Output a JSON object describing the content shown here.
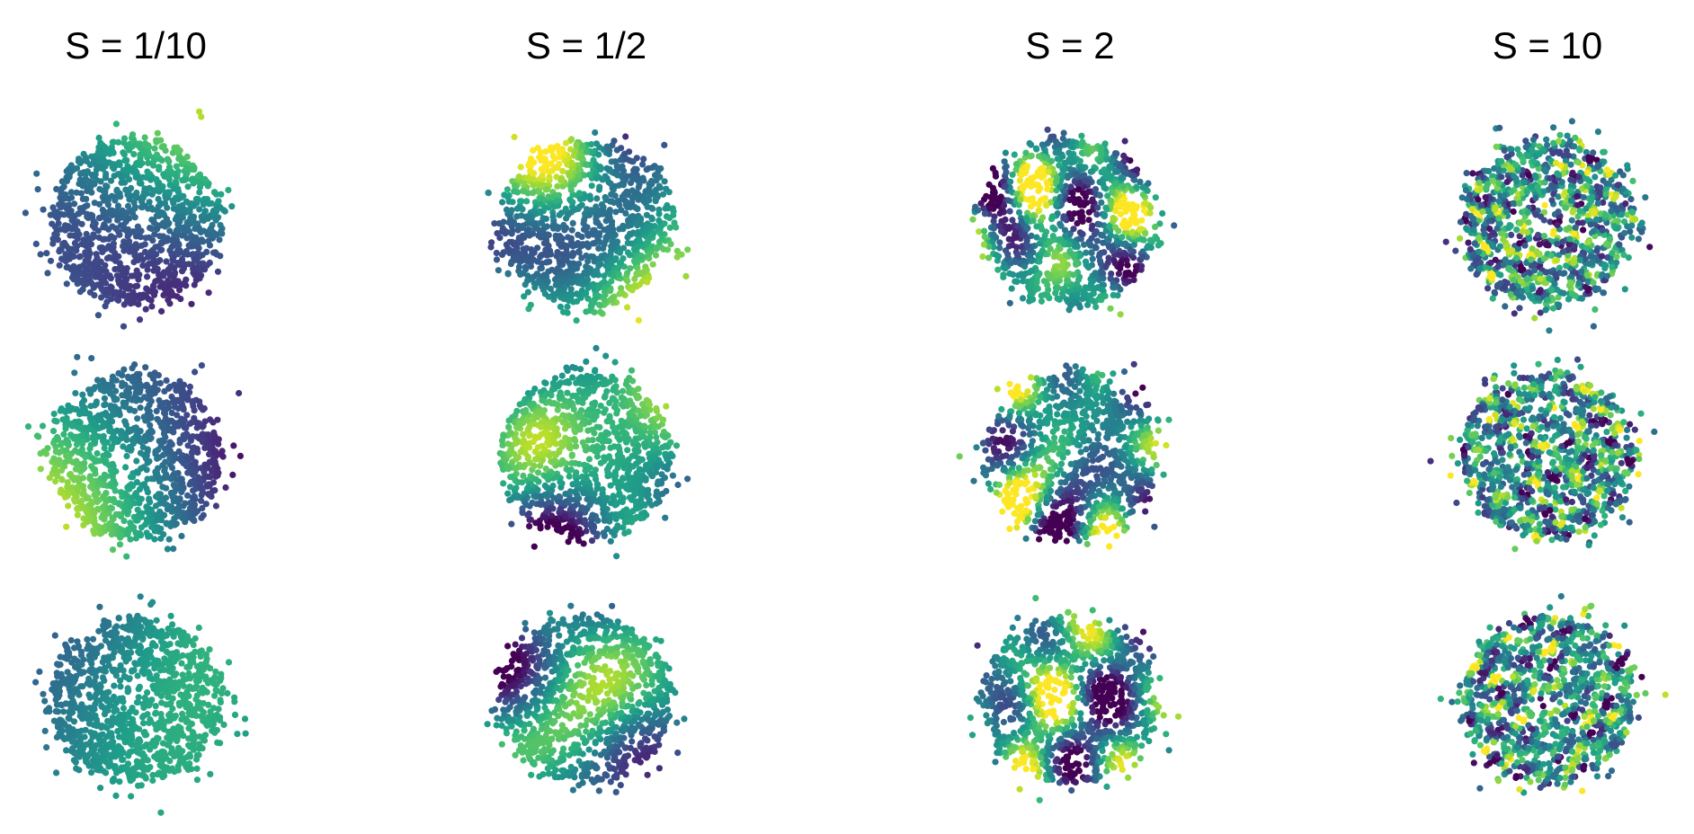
{
  "figure": {
    "column_titles": [
      "S = 1/10",
      "S = 1/2",
      "S = 2",
      "S = 10"
    ]
  }
}
